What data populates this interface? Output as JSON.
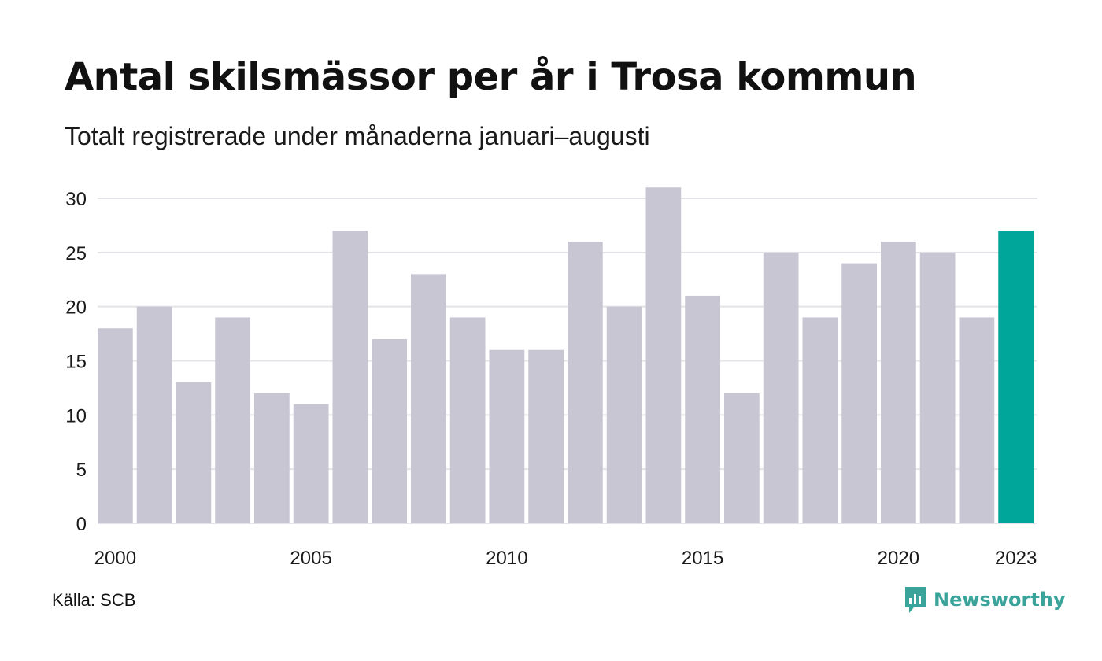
{
  "title": "Antal skilsmässor per år i Trosa kommun",
  "subtitle": "Totalt registrerade under månaderna januari–augusti",
  "source": "Källa: SCB",
  "brand": {
    "name": "Newsworthy",
    "color": "#3aa39a",
    "icon": "newsworthy-logo-icon"
  },
  "colors": {
    "bar": "#c8c6d2",
    "highlight": "#00a69a",
    "grid": "#e4e4e8"
  },
  "chart_data": {
    "type": "bar",
    "title": "Antal skilsmässor per år i Trosa kommun",
    "subtitle": "Totalt registrerade under månaderna januari–augusti",
    "xlabel": "",
    "ylabel": "",
    "categories": [
      "2000",
      "2001",
      "2002",
      "2003",
      "2004",
      "2005",
      "2006",
      "2007",
      "2008",
      "2009",
      "2010",
      "2011",
      "2012",
      "2013",
      "2014",
      "2015",
      "2016",
      "2017",
      "2018",
      "2019",
      "2020",
      "2021",
      "2022",
      "2023"
    ],
    "values": [
      18,
      20,
      13,
      19,
      12,
      11,
      27,
      17,
      23,
      19,
      16,
      16,
      26,
      20,
      31,
      21,
      12,
      25,
      19,
      24,
      26,
      25,
      19,
      27
    ],
    "highlight_category": "2023",
    "x_tick_labels": [
      "2000",
      "2005",
      "2010",
      "2015",
      "2020",
      "2023"
    ],
    "y_ticks": [
      0,
      5,
      10,
      15,
      20,
      25,
      30
    ],
    "ylim": [
      0,
      31
    ],
    "grid": true,
    "legend": "none"
  }
}
